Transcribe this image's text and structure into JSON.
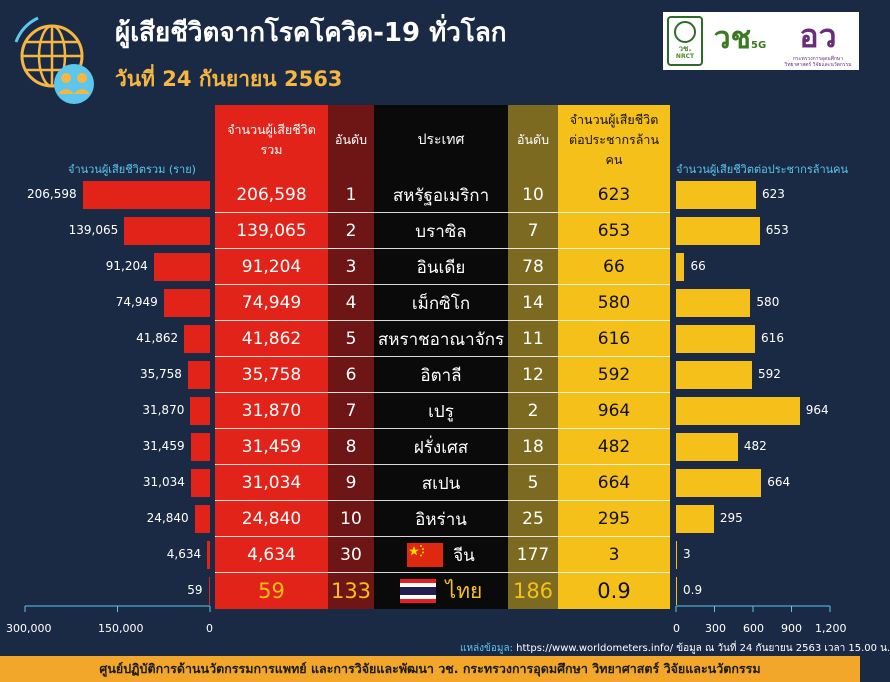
{
  "header": {
    "title": "ผู้เสียชีวิตจากโรคโควิด-19 ทั่วโลก",
    "subtitle": "วันที่ 24 กันยายน 2563",
    "logos": {
      "nrct_text": "วช.",
      "nrct_sub": "NRCT",
      "vch5g": "วช",
      "vch5g_sub": "5G",
      "mhesi_text": "อว",
      "mhesi_sub": "กระทรวงการอุดมศึกษา วิทยาศาสตร์ วิจัยและนวัตกรรม"
    }
  },
  "table": {
    "headers": {
      "total": "จำนวนผู้เสียชีวิตรวม",
      "rank": "อันดับ",
      "country": "ประเทศ",
      "rank_per_million": "อันดับ",
      "per_million": "จำนวนผู้เสียชีวิตต่อประชากรล้านคน"
    }
  },
  "chart_data": {
    "type": "bar",
    "left_axis_title": "จำนวนผู้เสียชีวิตรวม (ราย)",
    "right_axis_title": "จำนวนผู้เสียชีวิตต่อประชากรล้านคน",
    "left_xlim": [
      0,
      300000
    ],
    "left_ticks": [
      "300,000",
      "150,000",
      "0"
    ],
    "right_xlim": [
      0,
      1200
    ],
    "right_ticks": [
      "0",
      "300",
      "600",
      "900",
      "1,200"
    ],
    "colors": {
      "total": "#e2231a",
      "per_million": "#f6c01a"
    },
    "rows": [
      {
        "country": "สหรัฐอเมริกา",
        "total": 206598,
        "total_label": "206,598",
        "rank": "1",
        "rank_pc": "10",
        "per_million": 623,
        "pc_label": "623"
      },
      {
        "country": "บราซิล",
        "total": 139065,
        "total_label": "139,065",
        "rank": "2",
        "rank_pc": "7",
        "per_million": 653,
        "pc_label": "653"
      },
      {
        "country": "อินเดีย",
        "total": 91204,
        "total_label": "91,204",
        "rank": "3",
        "rank_pc": "78",
        "per_million": 66,
        "pc_label": "66"
      },
      {
        "country": "เม็กซิโก",
        "total": 74949,
        "total_label": "74,949",
        "rank": "4",
        "rank_pc": "14",
        "per_million": 580,
        "pc_label": "580"
      },
      {
        "country": "สหราชอาณาจักร",
        "total": 41862,
        "total_label": "41,862",
        "rank": "5",
        "rank_pc": "11",
        "per_million": 616,
        "pc_label": "616"
      },
      {
        "country": "อิตาลี",
        "total": 35758,
        "total_label": "35,758",
        "rank": "6",
        "rank_pc": "12",
        "per_million": 592,
        "pc_label": "592"
      },
      {
        "country": "เปรู",
        "total": 31870,
        "total_label": "31,870",
        "rank": "7",
        "rank_pc": "2",
        "per_million": 964,
        "pc_label": "964"
      },
      {
        "country": "ฝรั่งเศส",
        "total": 31459,
        "total_label": "31,459",
        "rank": "8",
        "rank_pc": "18",
        "per_million": 482,
        "pc_label": "482"
      },
      {
        "country": "สเปน",
        "total": 31034,
        "total_label": "31,034",
        "rank": "9",
        "rank_pc": "5",
        "per_million": 664,
        "pc_label": "664"
      },
      {
        "country": "อิหร่าน",
        "total": 24840,
        "total_label": "24,840",
        "rank": "10",
        "rank_pc": "25",
        "per_million": 295,
        "pc_label": "295"
      },
      {
        "country": "จีน",
        "total": 4634,
        "total_label": "4,634",
        "rank": "30",
        "rank_pc": "177",
        "per_million": 3,
        "pc_label": "3",
        "flag": "china"
      },
      {
        "country": "ไทย",
        "total": 59,
        "total_label": "59",
        "rank": "133",
        "rank_pc": "186",
        "per_million": 0.9,
        "pc_label": "0.9",
        "flag": "thailand",
        "highlight": true
      }
    ]
  },
  "source": {
    "label": "แหล่งข้อมูล:",
    "text": "https://www.worldometers.info/ ข้อมูล ณ วันที่ 24 กันยายน 2563 เวลา 15.00 น."
  },
  "footer": {
    "text": "ศูนย์ปฏิบัติการด้านนวัตกรรมการแพทย์ และการวิจัยและพัฒนา วช.  กระทรวงการอุดมศึกษา วิทยาศาสตร์ วิจัยและนวัตกรรม"
  }
}
